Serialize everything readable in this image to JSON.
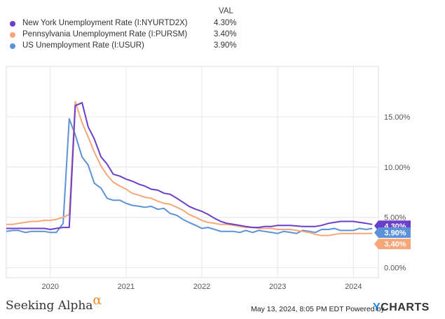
{
  "legend": {
    "header": "VAL",
    "items": [
      {
        "name": "New York Unemployment Rate (I:NYURTD2X)",
        "value": "4.30%",
        "color": "#6a3fc9"
      },
      {
        "name": "Pennsylvania Unemployment Rate (I:PURSM)",
        "value": "3.40%",
        "color": "#f6a77a"
      },
      {
        "name": "US Unemployment Rate (I:USUR)",
        "value": "3.90%",
        "color": "#5d92d8"
      }
    ]
  },
  "footer": {
    "brand": "Seeking Alpha",
    "brand_mark": "α",
    "timestamp": "May 13, 2024, 8:05 PM EDT Powered by",
    "logo_y": "Y",
    "logo_rest": "CHARTS"
  },
  "chart_data": {
    "type": "line",
    "xlabel": "",
    "ylabel": "",
    "x_ticks": [
      "2020",
      "2021",
      "2022",
      "2023",
      "2024"
    ],
    "y_ticks": [
      "0.00%",
      "5.00%",
      "10.00%",
      "15.00%"
    ],
    "ylim": [
      -1,
      20
    ],
    "xlim": [
      2019.42,
      2024.33
    ],
    "grid": true,
    "legend_position": "top-left",
    "end_labels": [
      "4.30%",
      "3.90%",
      "3.40%"
    ],
    "series": [
      {
        "name": "New York Unemployment Rate (I:NYURTD2X)",
        "color": "#6a3fc9",
        "points": [
          [
            2019.42,
            3.9
          ],
          [
            2019.67,
            3.9
          ],
          [
            2019.92,
            3.9
          ],
          [
            2020.0,
            3.8
          ],
          [
            2020.08,
            3.9
          ],
          [
            2020.17,
            4.0
          ],
          [
            2020.25,
            4.0
          ],
          [
            2020.33,
            16.1
          ],
          [
            2020.42,
            16.4
          ],
          [
            2020.5,
            14.0
          ],
          [
            2020.58,
            12.8
          ],
          [
            2020.67,
            11.0
          ],
          [
            2020.75,
            10.3
          ],
          [
            2020.83,
            9.3
          ],
          [
            2020.92,
            9.1
          ],
          [
            2021.0,
            8.8
          ],
          [
            2021.08,
            8.6
          ],
          [
            2021.17,
            8.3
          ],
          [
            2021.25,
            8.1
          ],
          [
            2021.33,
            7.8
          ],
          [
            2021.42,
            7.7
          ],
          [
            2021.5,
            7.4
          ],
          [
            2021.58,
            7.3
          ],
          [
            2021.67,
            6.9
          ],
          [
            2021.75,
            6.5
          ],
          [
            2021.83,
            6.1
          ],
          [
            2021.92,
            5.8
          ],
          [
            2022.0,
            5.6
          ],
          [
            2022.08,
            5.3
          ],
          [
            2022.17,
            4.9
          ],
          [
            2022.25,
            4.6
          ],
          [
            2022.33,
            4.4
          ],
          [
            2022.42,
            4.3
          ],
          [
            2022.5,
            4.2
          ],
          [
            2022.58,
            4.1
          ],
          [
            2022.67,
            4.0
          ],
          [
            2022.75,
            4.0
          ],
          [
            2022.83,
            4.1
          ],
          [
            2022.92,
            4.1
          ],
          [
            2023.0,
            4.2
          ],
          [
            2023.17,
            4.2
          ],
          [
            2023.33,
            4.1
          ],
          [
            2023.5,
            4.1
          ],
          [
            2023.58,
            4.2
          ],
          [
            2023.67,
            4.4
          ],
          [
            2023.75,
            4.5
          ],
          [
            2023.83,
            4.6
          ],
          [
            2023.92,
            4.6
          ],
          [
            2024.0,
            4.6
          ],
          [
            2024.08,
            4.5
          ],
          [
            2024.17,
            4.4
          ],
          [
            2024.25,
            4.3
          ]
        ]
      },
      {
        "name": "Pennsylvania Unemployment Rate (I:PURSM)",
        "color": "#f6a77a",
        "points": [
          [
            2019.42,
            4.3
          ],
          [
            2019.5,
            4.3
          ],
          [
            2019.58,
            4.4
          ],
          [
            2019.67,
            4.5
          ],
          [
            2019.75,
            4.6
          ],
          [
            2019.83,
            4.6
          ],
          [
            2019.92,
            4.7
          ],
          [
            2020.0,
            4.7
          ],
          [
            2020.08,
            4.8
          ],
          [
            2020.17,
            5.0
          ],
          [
            2020.25,
            5.3
          ],
          [
            2020.33,
            16.5
          ],
          [
            2020.42,
            14.4
          ],
          [
            2020.5,
            13.0
          ],
          [
            2020.58,
            11.5
          ],
          [
            2020.67,
            10.1
          ],
          [
            2020.75,
            9.2
          ],
          [
            2020.83,
            8.5
          ],
          [
            2020.92,
            8.1
          ],
          [
            2021.0,
            7.8
          ],
          [
            2021.08,
            7.4
          ],
          [
            2021.17,
            7.2
          ],
          [
            2021.25,
            7.0
          ],
          [
            2021.33,
            6.9
          ],
          [
            2021.42,
            6.6
          ],
          [
            2021.5,
            6.4
          ],
          [
            2021.58,
            6.3
          ],
          [
            2021.67,
            6.0
          ],
          [
            2021.75,
            5.7
          ],
          [
            2021.83,
            5.3
          ],
          [
            2021.92,
            5.0
          ],
          [
            2022.0,
            4.7
          ],
          [
            2022.08,
            4.5
          ],
          [
            2022.17,
            4.4
          ],
          [
            2022.25,
            4.3
          ],
          [
            2022.33,
            4.3
          ],
          [
            2022.42,
            4.2
          ],
          [
            2022.5,
            4.1
          ],
          [
            2022.58,
            4.0
          ],
          [
            2022.67,
            4.0
          ],
          [
            2022.75,
            3.9
          ],
          [
            2022.83,
            3.9
          ],
          [
            2022.92,
            3.9
          ],
          [
            2023.0,
            3.8
          ],
          [
            2023.17,
            3.8
          ],
          [
            2023.33,
            3.6
          ],
          [
            2023.42,
            3.5
          ],
          [
            2023.5,
            3.3
          ],
          [
            2023.58,
            3.2
          ],
          [
            2023.67,
            3.2
          ],
          [
            2023.75,
            3.3
          ],
          [
            2023.83,
            3.4
          ],
          [
            2023.92,
            3.4
          ],
          [
            2024.0,
            3.4
          ],
          [
            2024.17,
            3.4
          ],
          [
            2024.25,
            3.4
          ]
        ]
      },
      {
        "name": "US Unemployment Rate (I:USUR)",
        "color": "#5d92d8",
        "points": [
          [
            2019.42,
            3.6
          ],
          [
            2019.5,
            3.7
          ],
          [
            2019.58,
            3.7
          ],
          [
            2019.67,
            3.5
          ],
          [
            2019.75,
            3.6
          ],
          [
            2019.83,
            3.6
          ],
          [
            2019.92,
            3.6
          ],
          [
            2020.0,
            3.5
          ],
          [
            2020.08,
            3.5
          ],
          [
            2020.17,
            4.4
          ],
          [
            2020.25,
            14.8
          ],
          [
            2020.33,
            13.2
          ],
          [
            2020.42,
            11.0
          ],
          [
            2020.5,
            10.2
          ],
          [
            2020.58,
            8.4
          ],
          [
            2020.67,
            7.9
          ],
          [
            2020.75,
            6.9
          ],
          [
            2020.83,
            6.7
          ],
          [
            2020.92,
            6.7
          ],
          [
            2021.0,
            6.4
          ],
          [
            2021.08,
            6.2
          ],
          [
            2021.17,
            6.1
          ],
          [
            2021.25,
            6.0
          ],
          [
            2021.33,
            6.1
          ],
          [
            2021.42,
            5.8
          ],
          [
            2021.5,
            5.9
          ],
          [
            2021.58,
            5.4
          ],
          [
            2021.67,
            5.2
          ],
          [
            2021.75,
            4.8
          ],
          [
            2021.83,
            4.5
          ],
          [
            2021.92,
            4.2
          ],
          [
            2022.0,
            3.9
          ],
          [
            2022.08,
            4.0
          ],
          [
            2022.17,
            3.8
          ],
          [
            2022.25,
            3.6
          ],
          [
            2022.33,
            3.6
          ],
          [
            2022.42,
            3.6
          ],
          [
            2022.5,
            3.5
          ],
          [
            2022.58,
            3.7
          ],
          [
            2022.67,
            3.5
          ],
          [
            2022.75,
            3.7
          ],
          [
            2022.83,
            3.6
          ],
          [
            2022.92,
            3.5
          ],
          [
            2023.0,
            3.4
          ],
          [
            2023.08,
            3.6
          ],
          [
            2023.17,
            3.5
          ],
          [
            2023.25,
            3.4
          ],
          [
            2023.33,
            3.7
          ],
          [
            2023.42,
            3.6
          ],
          [
            2023.5,
            3.5
          ],
          [
            2023.58,
            3.8
          ],
          [
            2023.67,
            3.8
          ],
          [
            2023.75,
            3.9
          ],
          [
            2023.83,
            3.7
          ],
          [
            2023.92,
            3.7
          ],
          [
            2024.0,
            3.7
          ],
          [
            2024.08,
            3.9
          ],
          [
            2024.17,
            3.8
          ],
          [
            2024.25,
            3.9
          ]
        ]
      }
    ]
  }
}
